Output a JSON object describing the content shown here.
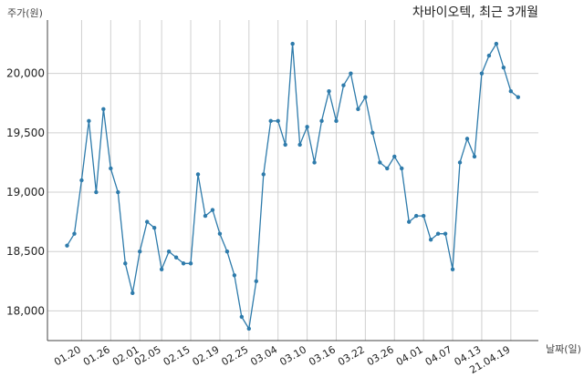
{
  "chart_data": {
    "type": "line",
    "title": "차바이오텍, 최근 3개월",
    "xlabel": "날짜(일)",
    "ylabel": "주가(원)",
    "ylim": [
      17750,
      20450
    ],
    "grid": true,
    "yticks": [
      18000,
      18500,
      19000,
      19500,
      20000
    ],
    "ytick_labels": [
      "18,000",
      "18,500",
      "19,000",
      "19,500",
      "20,000"
    ],
    "x_tick_labels": [
      "01.20",
      "01.26",
      "02.01",
      "02.05",
      "02.15",
      "02.19",
      "02.25",
      "03.04",
      "03.10",
      "03.16",
      "03.22",
      "03.26",
      "04.01",
      "04.07",
      "04.13",
      "21.04.19"
    ],
    "x_tick_indices": [
      2,
      6,
      10,
      13,
      17,
      21,
      25,
      29,
      33,
      37,
      41,
      45,
      49,
      53,
      57,
      61
    ],
    "line_color": "#2e7bab",
    "series": [
      {
        "values": [
          18550,
          18650,
          19100,
          19600,
          19000,
          19700,
          19200,
          19000,
          18400,
          18150,
          18500,
          18750,
          18700,
          18350,
          18500,
          18450,
          18400,
          18400,
          19150,
          18800,
          18850,
          18650,
          18500,
          18300,
          17950,
          17850,
          18250,
          19150,
          19600,
          19600,
          19400,
          20250,
          19400,
          19550,
          19250,
          19600,
          19850,
          19600,
          19900,
          20000,
          19700,
          19800,
          19500,
          19250,
          19200,
          19300,
          19200,
          18750,
          18800,
          18800,
          18600,
          18650,
          18650,
          18350,
          19250,
          19450,
          19300,
          20000,
          20150,
          20250,
          20050,
          19850,
          19800
        ]
      }
    ]
  }
}
